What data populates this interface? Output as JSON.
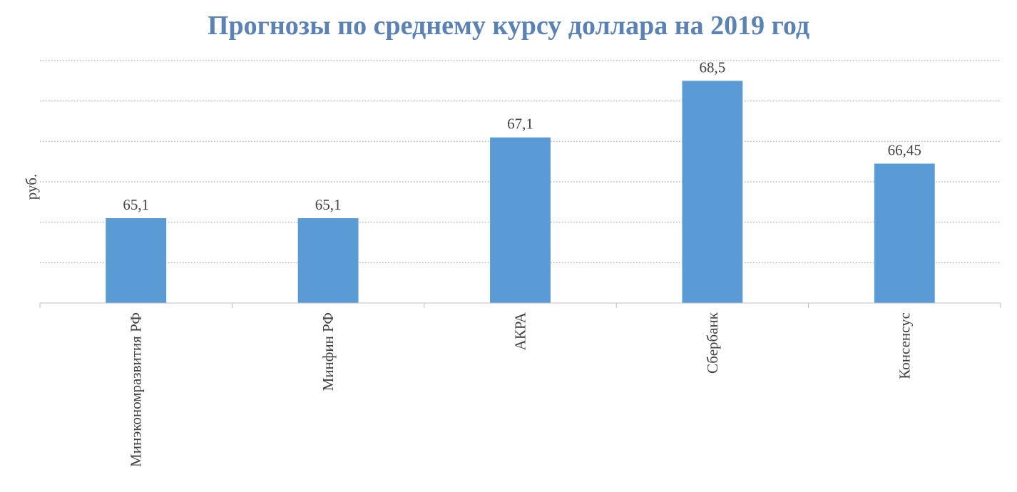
{
  "chart_data": {
    "type": "bar",
    "title": "Прогнозы по среднему курсу доллара на 2019 год",
    "xlabel": "",
    "ylabel": "руб.",
    "categories": [
      "Минэкономразвития РФ",
      "Минфин РФ",
      "АКРА",
      "Сбербанк",
      "Консенсус"
    ],
    "values": [
      65.1,
      65.1,
      67.1,
      68.5,
      66.45
    ],
    "data_labels": [
      "65,1",
      "65,1",
      "67,1",
      "68,5",
      "66,45"
    ],
    "ylim": [
      63,
      69
    ],
    "grid": true,
    "legend": "none",
    "colors": {
      "bar": "#5b9bd5",
      "title": "#5b82b4"
    }
  }
}
